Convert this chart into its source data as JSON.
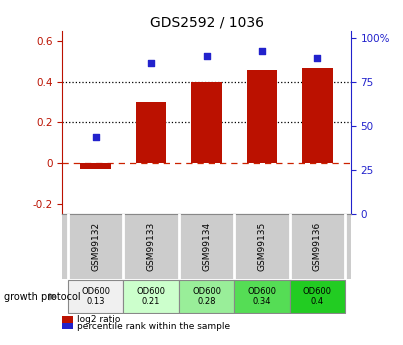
{
  "title": "GDS2592 / 1036",
  "samples": [
    "GSM99132",
    "GSM99133",
    "GSM99134",
    "GSM99135",
    "GSM99136"
  ],
  "log2_ratio": [
    -0.03,
    0.3,
    0.4,
    0.46,
    0.47
  ],
  "percentile_rank": [
    44,
    86,
    90,
    93,
    89
  ],
  "bar_color": "#bb1100",
  "dot_color": "#2222cc",
  "left_ylim": [
    -0.25,
    0.65
  ],
  "left_yticks": [
    -0.2,
    0.0,
    0.2,
    0.4,
    0.6
  ],
  "left_yticklabels": [
    "-0.2",
    "0",
    "0.2",
    "0.4",
    "0.6"
  ],
  "right_ylim": [
    0,
    104.167
  ],
  "right_yticks": [
    0,
    25,
    50,
    75,
    100
  ],
  "right_yticklabels": [
    "0",
    "25",
    "50",
    "75",
    "100%"
  ],
  "hline_zero_color": "#cc2200",
  "hline_dot_color": "#000000",
  "protocol_labels": [
    "OD600\n0.13",
    "OD600\n0.21",
    "OD600\n0.28",
    "OD600\n0.34",
    "OD600\n0.4"
  ],
  "protocol_colors": [
    "#f0f0f0",
    "#ccffcc",
    "#99ee99",
    "#55dd55",
    "#22cc22"
  ],
  "sample_bg_color": "#cccccc",
  "growth_protocol_text": "growth protocol",
  "legend_bar_label": "log2 ratio",
  "legend_dot_label": "percentile rank within the sample",
  "bar_width": 0.55
}
